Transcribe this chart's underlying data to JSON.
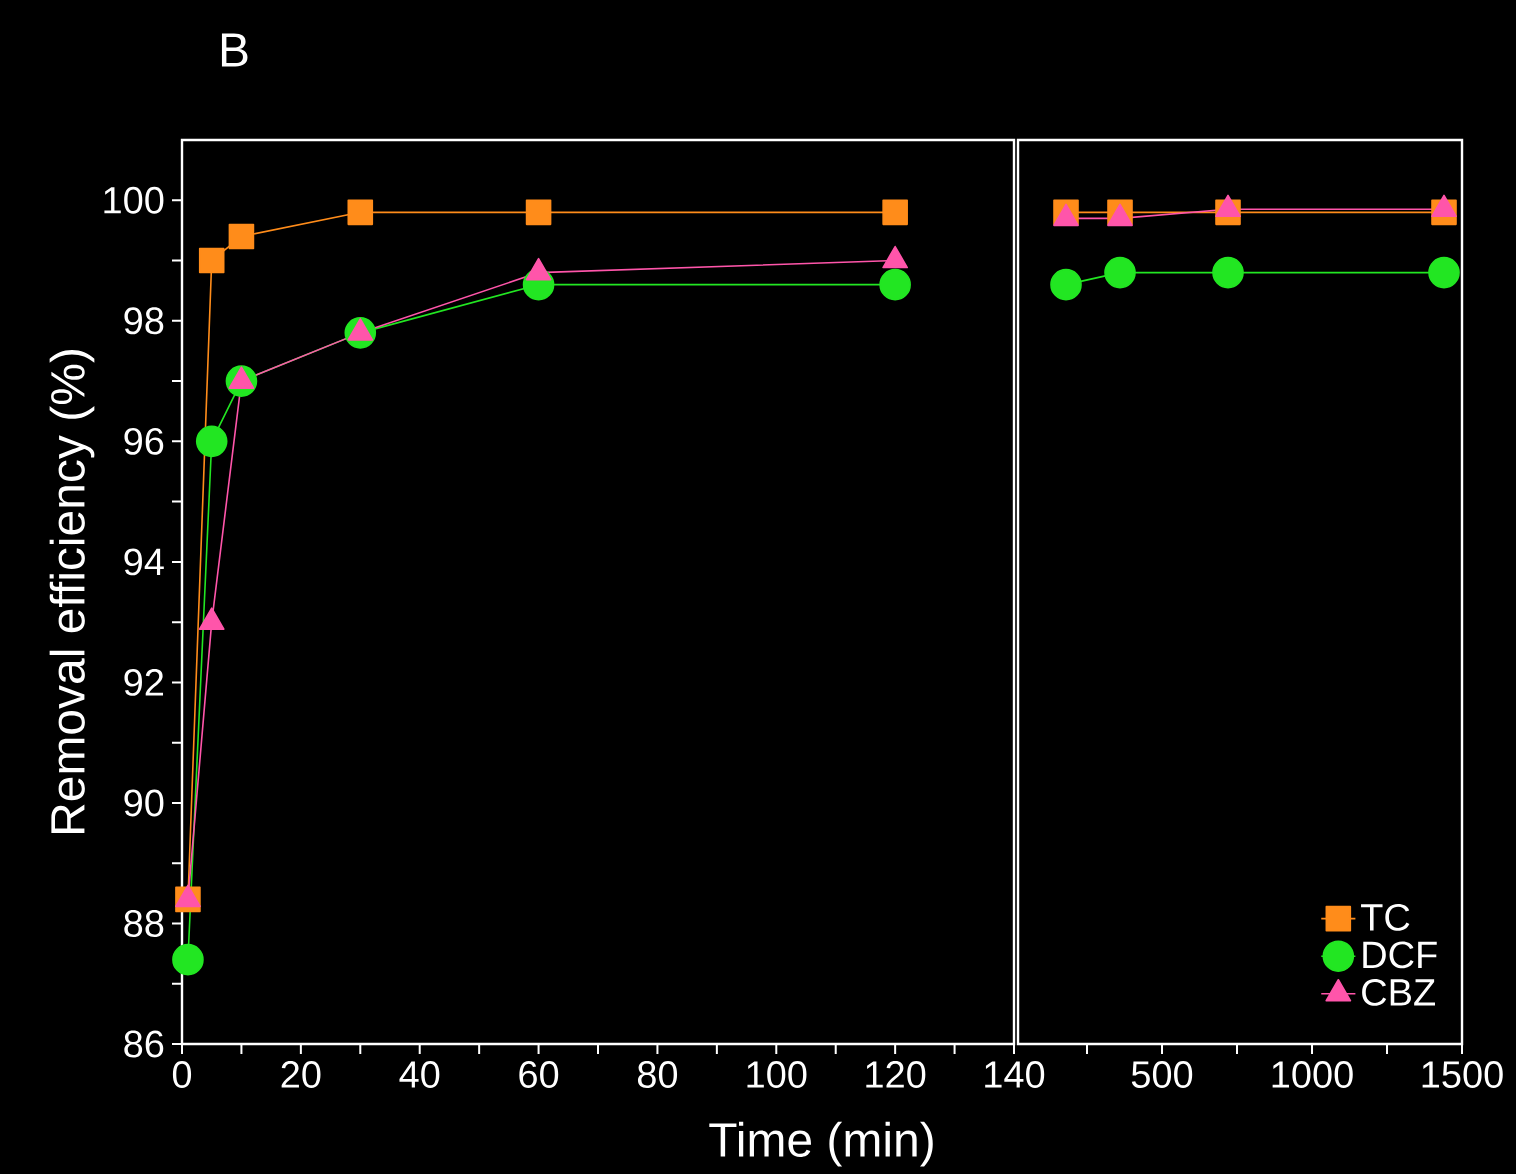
{
  "chart_data": [
    {
      "type": "line",
      "title": "B",
      "xlabel": "Time (min)",
      "ylabel": "Removal efficiency (%)",
      "xlim": [
        0,
        140
      ],
      "ylim": [
        86,
        101
      ],
      "xticks": [
        0,
        {
          "value": 10,
          "label": null
        },
        20,
        {
          "value": 30,
          "label": null
        },
        40,
        {
          "value": 50,
          "label": null
        },
        60,
        {
          "value": 70,
          "label": null
        },
        80,
        {
          "value": 90,
          "label": null
        },
        100,
        {
          "value": 110,
          "label": null
        },
        120,
        {
          "value": 130,
          "label": null
        },
        140
      ],
      "yticks": [
        86,
        {
          "value": 87,
          "label": null
        },
        88,
        {
          "value": 89,
          "label": null
        },
        90,
        {
          "value": 91,
          "label": null
        },
        92,
        {
          "value": 93,
          "label": null
        },
        94,
        {
          "value": 95,
          "label": null
        },
        96,
        {
          "value": 97,
          "label": null
        },
        98,
        {
          "value": 99,
          "label": null
        },
        100
      ],
      "legend": false,
      "line_style": "solid",
      "series": [
        {
          "color": "#ff8c1a",
          "marker": "square",
          "x": [
            1,
            5,
            10,
            30,
            60,
            120
          ],
          "values": [
            88.4,
            99.0,
            99.4,
            99.8,
            99.8,
            99.8
          ]
        },
        {
          "color": "#22e622",
          "marker": "circle",
          "x": [
            1,
            5,
            10,
            30,
            60,
            120
          ],
          "values": [
            87.4,
            96.0,
            97.0,
            97.8,
            98.6,
            98.6
          ]
        },
        {
          "color": "#ff55aa",
          "marker": "triangle",
          "x": [
            1,
            5,
            10,
            30,
            60,
            120
          ],
          "values": [
            88.4,
            93.0,
            97.0,
            97.8,
            98.8,
            99.0
          ]
        }
      ]
    },
    {
      "type": "line",
      "xlim": [
        20,
        1500
      ],
      "ylim": [
        86,
        101
      ],
      "tick_labels": "x",
      "xticks": [
        {
          "value": 250,
          "label": null
        },
        500,
        {
          "value": 750,
          "label": null
        },
        1000,
        {
          "value": 1250,
          "label": null
        },
        1500
      ],
      "legend": "bottom right",
      "line_style": "solid",
      "series": [
        {
          "name": "TC",
          "color": "#ff8c1a",
          "marker": "square",
          "x": [
            180,
            360,
            720,
            1440
          ],
          "values": [
            99.8,
            99.8,
            99.8,
            99.8
          ]
        },
        {
          "name": "DCF",
          "color": "#22e622",
          "marker": "circle",
          "x": [
            180,
            360,
            720,
            1440
          ],
          "values": [
            98.6,
            98.8,
            98.8,
            98.8
          ]
        },
        {
          "name": "CBZ",
          "color": "#ff55aa",
          "marker": "triangle",
          "x": [
            180,
            360,
            720,
            1440
          ],
          "values": [
            99.7,
            99.7,
            99.85,
            99.85
          ]
        }
      ]
    }
  ]
}
